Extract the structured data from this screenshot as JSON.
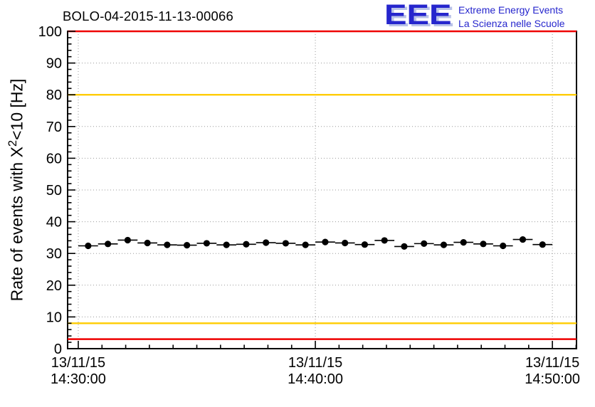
{
  "header": {
    "title": "BOLO-04-2015-11-13-00066",
    "logo": {
      "acronym": "EEE",
      "line1": "Extreme Energy Events",
      "line2": "La Scienza nelle Scuole",
      "color": "#2626cd"
    }
  },
  "chart_data": {
    "type": "scatter",
    "title": "BOLO-04-2015-11-13-00066",
    "ylabel_plain": "Rate of events with X^2<10 [Hz]",
    "ylabel_parts": [
      "Rate of events with X",
      "2",
      "<10 [Hz]"
    ],
    "xlabel": "",
    "ylim": [
      0,
      100
    ],
    "y_major_ticks": [
      0,
      10,
      20,
      30,
      40,
      50,
      60,
      70,
      80,
      90,
      100
    ],
    "y_minor_step": 2,
    "grid": {
      "dotted": true,
      "color": "#999999"
    },
    "x_axis": {
      "date": "13/11/15",
      "range": [
        "14:29:33",
        "14:51:01"
      ],
      "minor_step_seconds": 60,
      "ticks": [
        {
          "time": "14:30:00",
          "label_line1": "13/11/15",
          "label_line2": "14:30:00"
        },
        {
          "time": "14:40:00",
          "label_line1": "13/11/15",
          "label_line2": "14:40:00"
        },
        {
          "time": "14:50:00",
          "label_line1": "13/11/15",
          "label_line2": "14:50:00"
        }
      ]
    },
    "threshold_lines": [
      {
        "name": "upper-alarm",
        "y": 100,
        "color": "#ee0000"
      },
      {
        "name": "upper-warning",
        "y": 80,
        "color": "#ffcc00"
      },
      {
        "name": "lower-warning",
        "y": 8,
        "color": "#ffcc00"
      },
      {
        "name": "lower-alarm",
        "y": 3,
        "color": "#ee0000"
      }
    ],
    "series": [
      {
        "name": "rate",
        "marker": "filled-circle",
        "color": "#000000",
        "bin_halfwidth_seconds": 25,
        "y_err": 0.8,
        "points": [
          {
            "t": "14:30:25",
            "y": 32.4
          },
          {
            "t": "14:31:15",
            "y": 33.0
          },
          {
            "t": "14:32:05",
            "y": 34.2
          },
          {
            "t": "14:32:55",
            "y": 33.3
          },
          {
            "t": "14:33:45",
            "y": 32.7
          },
          {
            "t": "14:34:35",
            "y": 32.6
          },
          {
            "t": "14:35:25",
            "y": 33.2
          },
          {
            "t": "14:36:15",
            "y": 32.7
          },
          {
            "t": "14:37:05",
            "y": 32.9
          },
          {
            "t": "14:37:55",
            "y": 33.4
          },
          {
            "t": "14:38:45",
            "y": 33.2
          },
          {
            "t": "14:39:35",
            "y": 32.7
          },
          {
            "t": "14:40:25",
            "y": 33.6
          },
          {
            "t": "14:41:15",
            "y": 33.3
          },
          {
            "t": "14:42:05",
            "y": 32.8
          },
          {
            "t": "14:42:55",
            "y": 34.1
          },
          {
            "t": "14:43:45",
            "y": 32.2
          },
          {
            "t": "14:44:35",
            "y": 33.1
          },
          {
            "t": "14:45:25",
            "y": 32.7
          },
          {
            "t": "14:46:15",
            "y": 33.5
          },
          {
            "t": "14:47:05",
            "y": 33.0
          },
          {
            "t": "14:47:55",
            "y": 32.4
          },
          {
            "t": "14:48:45",
            "y": 34.4
          },
          {
            "t": "14:49:35",
            "y": 32.8
          }
        ]
      }
    ]
  }
}
